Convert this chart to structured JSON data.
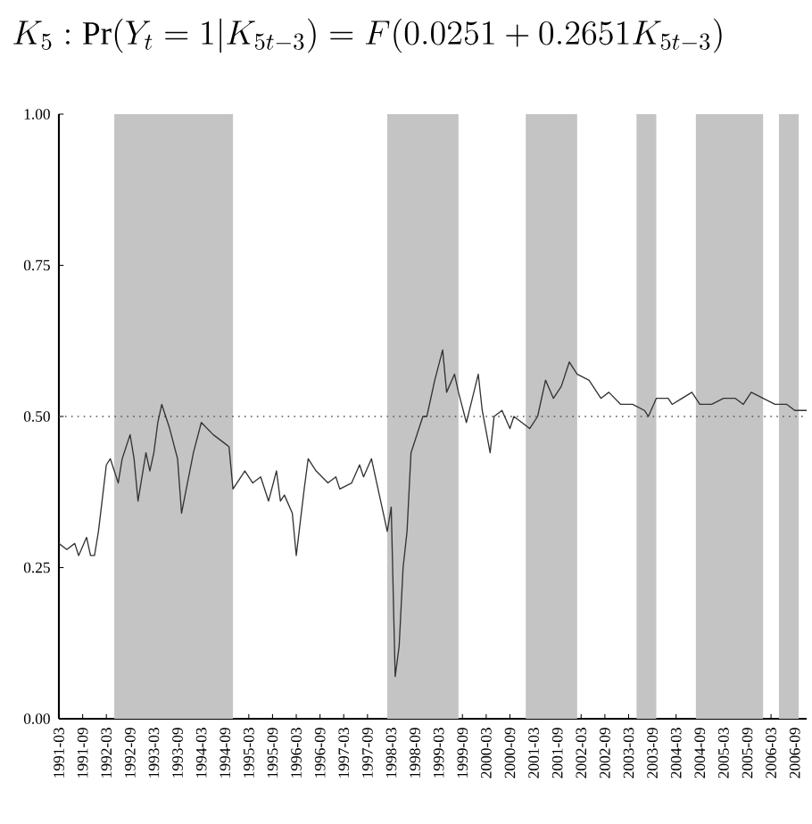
{
  "chart_data": {
    "type": "line",
    "title": "K_5 : \\Pr(Y_t = 1|K_{5t-3}) = F(0.0251+0.2651K_{5t-3})",
    "series": [
      {
        "color": "#333333",
        "line_style": "solid",
        "x": [
          "1991-03",
          "1991-05",
          "1991-07",
          "1991-08",
          "1991-10",
          "1991-11",
          "1991-12",
          "1992-01",
          "1992-03",
          "1992-04",
          "1992-06",
          "1992-07",
          "1992-09",
          "1992-10",
          "1992-11",
          "1993-01",
          "1993-02",
          "1993-03",
          "1993-04",
          "1993-05",
          "1993-07",
          "1993-09",
          "1993-10",
          "1994-01",
          "1994-03",
          "1994-06",
          "1994-08",
          "1994-10",
          "1994-11",
          "1995-02",
          "1995-04",
          "1995-06",
          "1995-08",
          "1995-10",
          "1995-11",
          "1995-12",
          "1996-02",
          "1996-03",
          "1996-05",
          "1996-06",
          "1996-08",
          "1996-11",
          "1997-01",
          "1997-02",
          "1997-05",
          "1997-07",
          "1997-08",
          "1997-10",
          "1997-12",
          "1998-02",
          "1998-03",
          "1998-04",
          "1998-05",
          "1998-06",
          "1998-07",
          "1998-08",
          "1998-11",
          "1998-12",
          "1999-02",
          "1999-04",
          "1999-05",
          "1999-07",
          "1999-08",
          "1999-10",
          "2000-01",
          "2000-02",
          "2000-04",
          "2000-05",
          "2000-07",
          "2000-09",
          "2000-10",
          "2000-12",
          "2001-02",
          "2001-04",
          "2001-06",
          "2001-08",
          "2001-10",
          "2001-12",
          "2002-02",
          "2002-05",
          "2002-08",
          "2002-10",
          "2003-01",
          "2003-04",
          "2003-07",
          "2003-08",
          "2003-10",
          "2004-01",
          "2004-02",
          "2004-07",
          "2004-09",
          "2004-12",
          "2005-03",
          "2005-06",
          "2005-08",
          "2005-10",
          "2006-01",
          "2006-04",
          "2006-07",
          "2006-09",
          "2006-12"
        ],
        "values": [
          0.29,
          0.28,
          0.29,
          0.27,
          0.3,
          0.27,
          0.27,
          0.31,
          0.42,
          0.43,
          0.39,
          0.43,
          0.47,
          0.43,
          0.36,
          0.44,
          0.41,
          0.44,
          0.49,
          0.52,
          0.48,
          0.43,
          0.34,
          0.44,
          0.49,
          0.47,
          0.46,
          0.45,
          0.38,
          0.41,
          0.39,
          0.4,
          0.36,
          0.41,
          0.36,
          0.37,
          0.34,
          0.27,
          0.38,
          0.43,
          0.41,
          0.39,
          0.4,
          0.38,
          0.39,
          0.42,
          0.4,
          0.43,
          0.37,
          0.31,
          0.35,
          0.07,
          0.12,
          0.25,
          0.31,
          0.44,
          0.5,
          0.5,
          0.56,
          0.61,
          0.54,
          0.57,
          0.54,
          0.49,
          0.57,
          0.51,
          0.44,
          0.5,
          0.51,
          0.48,
          0.5,
          0.49,
          0.48,
          0.5,
          0.56,
          0.53,
          0.55,
          0.59,
          0.57,
          0.56,
          0.53,
          0.54,
          0.52,
          0.52,
          0.51,
          0.5,
          0.53,
          0.53,
          0.52,
          0.54,
          0.52,
          0.52,
          0.53,
          0.53,
          0.52,
          0.54,
          0.53,
          0.52,
          0.52,
          0.51,
          0.51
        ]
      }
    ],
    "xlim": [
      "1991-03",
      "2006-12"
    ],
    "xticks": [
      "1991-03",
      "1991-09",
      "1992-03",
      "1992-09",
      "1993-03",
      "1993-09",
      "1994-03",
      "1994-09",
      "1995-03",
      "1995-09",
      "1996-03",
      "1996-09",
      "1997-03",
      "1997-09",
      "1998-03",
      "1998-09",
      "1999-03",
      "1999-09",
      "2000-03",
      "2000-09",
      "2001-03",
      "2001-09",
      "2002-03",
      "2002-09",
      "2003-03",
      "2003-09",
      "2004-03",
      "2004-09",
      "2005-03",
      "2005-09",
      "2006-03",
      "2006-09"
    ],
    "ylim": [
      0,
      1
    ],
    "yticks": [
      {
        "value": 0,
        "label": "0.00"
      },
      {
        "value": 0.25,
        "label": "0.25"
      },
      {
        "value": 0.5,
        "label": "0.50"
      },
      {
        "value": 0.75,
        "label": "0.75"
      },
      {
        "value": 1,
        "label": "1.00"
      }
    ],
    "ref_lines": [
      {
        "axis": "y",
        "value": 0.5,
        "color": "#555555",
        "line_style": "dotted"
      }
    ],
    "bands": [
      {
        "axis": "x",
        "from": "1992-05",
        "to": "1994-11",
        "color": "#c4c4c4"
      },
      {
        "axis": "x",
        "from": "1998-02",
        "to": "1999-08",
        "color": "#c4c4c4"
      },
      {
        "axis": "x",
        "from": "2001-01",
        "to": "2002-02",
        "color": "#c4c4c4"
      },
      {
        "axis": "x",
        "from": "2003-05",
        "to": "2003-10",
        "color": "#c4c4c4"
      },
      {
        "axis": "x",
        "from": "2004-08",
        "to": "2006-01",
        "color": "#c4c4c4"
      },
      {
        "axis": "x",
        "from": "2006-05",
        "to": "2006-10",
        "color": "#c4c4c4"
      }
    ]
  }
}
